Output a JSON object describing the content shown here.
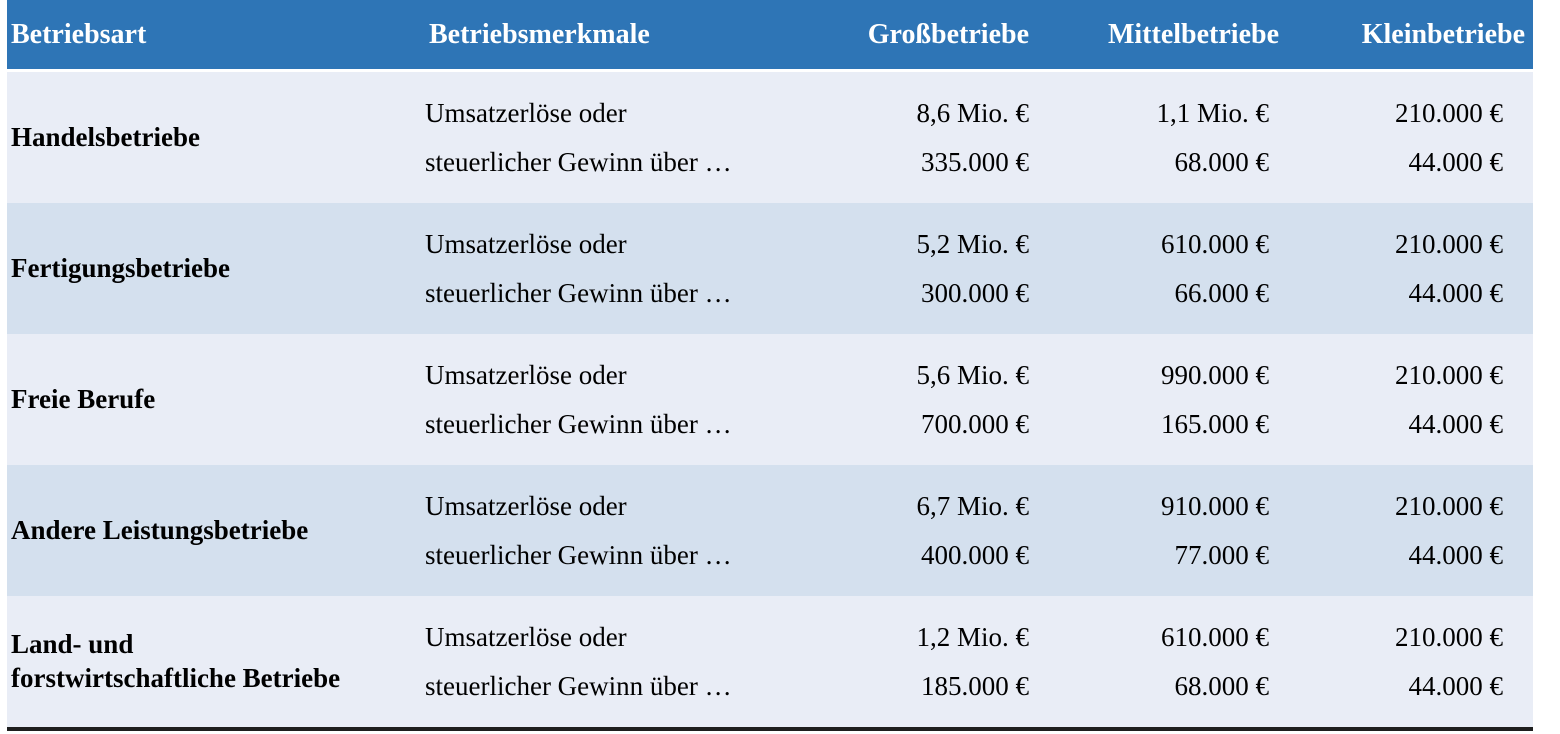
{
  "table": {
    "title_semantic": "Betriebsgroessenklassen-Schwellenwerte",
    "colors": {
      "header_bg": "#2e75b6",
      "header_text": "#ffffff",
      "row_light": "#e9edf6",
      "row_band": "#d4e0ee",
      "bottom_border": "#1e1e1e",
      "body_text": "#000000"
    },
    "columns": [
      {
        "key": "betriebsart",
        "label": "Betriebsart"
      },
      {
        "key": "betriebsmerkmale",
        "label": "Betriebsmerkmale"
      },
      {
        "key": "grossbetriebe",
        "label": "Großbetriebe"
      },
      {
        "key": "mittelbetriebe",
        "label": "Mittelbetriebe"
      },
      {
        "key": "kleinbetriebe",
        "label": "Kleinbetriebe"
      }
    ],
    "rows": [
      {
        "betriebsart_lines": [
          "Handelsbetriebe"
        ],
        "merkmale_lines": [
          "Umsatzerlöse oder",
          "steuerlicher Gewinn über …"
        ],
        "grossbetriebe": [
          "8,6 Mio. €",
          "335.000 €"
        ],
        "mittelbetriebe": [
          "1,1 Mio. €",
          "68.000 €"
        ],
        "kleinbetriebe": [
          "210.000 €",
          "44.000 €"
        ],
        "band": false
      },
      {
        "betriebsart_lines": [
          "Fertigungsbetriebe"
        ],
        "merkmale_lines": [
          "Umsatzerlöse oder",
          "steuerlicher Gewinn über …"
        ],
        "grossbetriebe": [
          "5,2 Mio. €",
          "300.000 €"
        ],
        "mittelbetriebe": [
          "610.000 €",
          "66.000 €"
        ],
        "kleinbetriebe": [
          "210.000 €",
          "44.000 €"
        ],
        "band": true
      },
      {
        "betriebsart_lines": [
          "Freie Berufe"
        ],
        "merkmale_lines": [
          "Umsatzerlöse oder",
          "steuerlicher Gewinn über …"
        ],
        "grossbetriebe": [
          "5,6 Mio. €",
          "700.000 €"
        ],
        "mittelbetriebe": [
          "990.000 €",
          "165.000 €"
        ],
        "kleinbetriebe": [
          "210.000 €",
          "44.000 €"
        ],
        "band": false
      },
      {
        "betriebsart_lines": [
          "Andere Leistungsbetriebe"
        ],
        "merkmale_lines": [
          "Umsatzerlöse oder",
          "steuerlicher Gewinn über …"
        ],
        "grossbetriebe": [
          "6,7 Mio. €",
          "400.000 €"
        ],
        "mittelbetriebe": [
          "910.000 €",
          "77.000 €"
        ],
        "kleinbetriebe": [
          "210.000 €",
          "44.000 €"
        ],
        "band": true
      },
      {
        "betriebsart_lines": [
          "Land- und",
          "forstwirtschaftliche Betriebe"
        ],
        "merkmale_lines": [
          "Umsatzerlöse oder",
          "steuerlicher Gewinn über …"
        ],
        "grossbetriebe": [
          "1,2 Mio. €",
          "185.000 €"
        ],
        "mittelbetriebe": [
          "610.000 €",
          "68.000 €"
        ],
        "kleinbetriebe": [
          "210.000 €",
          "44.000 €"
        ],
        "band": false
      }
    ]
  }
}
